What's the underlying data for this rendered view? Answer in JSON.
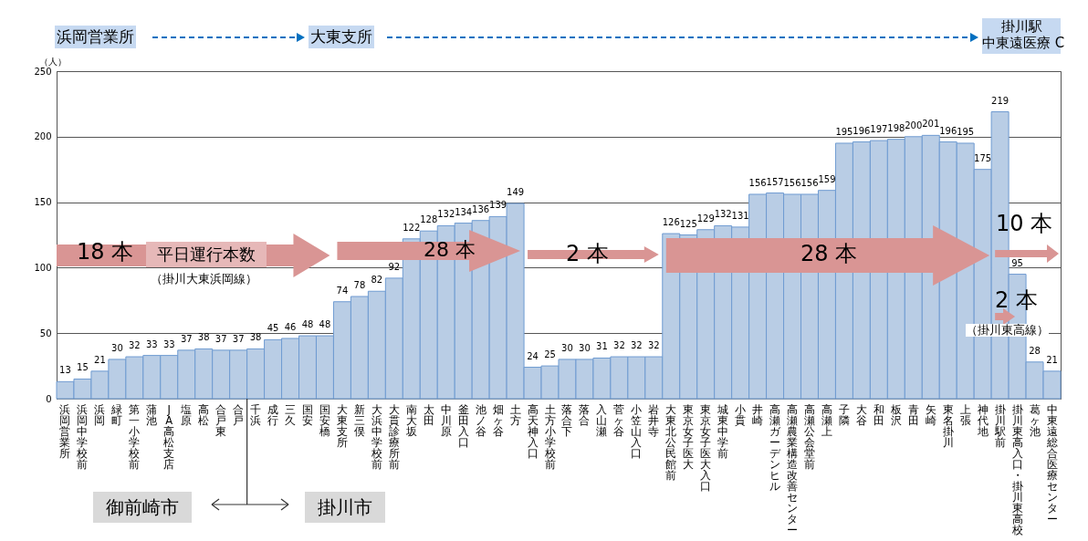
{
  "chart_data": {
    "type": "bar",
    "ylabel": "（人）",
    "categories": [
      "浜岡営業所",
      "浜岡中学校前",
      "浜岡",
      "緑町",
      "第一小学校前",
      "蒲池",
      "JA高松支店",
      "塩原",
      "高松",
      "合戸東",
      "合戸",
      "千浜",
      "成行",
      "三久",
      "国安",
      "国安橋",
      "大東支所",
      "新三俣",
      "大浜中学校前",
      "大貫診療所前",
      "南大坂",
      "太田",
      "中川原",
      "釜田入口",
      "池ノ谷",
      "畑ヶ谷",
      "土方",
      "高天神入口",
      "土方小学校前",
      "落合下",
      "落合",
      "入山瀬",
      "菅ヶ谷",
      "小笠山入口",
      "岩井寺",
      "大東北公民館前",
      "東京女子医大",
      "東京女子医大入口",
      "城東中学前",
      "小貫",
      "井崎",
      "高瀬ガーデンヒル",
      "高瀬農業構造改善センター",
      "高瀬公会堂前",
      "高瀬上",
      "子隣",
      "大谷",
      "和田",
      "板沢",
      "青田",
      "矢崎",
      "東名掛川",
      "上張",
      "神代地",
      "掛川駅前",
      "掛川東高入口・掛川東高校",
      "葛ヶ池",
      "中東遠総合医療センター"
    ],
    "values": [
      13,
      15,
      21,
      30,
      32,
      33,
      33,
      37,
      38,
      37,
      37,
      38,
      45,
      46,
      48,
      48,
      74,
      78,
      82,
      92,
      122,
      128,
      132,
      134,
      136,
      139,
      149,
      24,
      25,
      30,
      30,
      31,
      32,
      32,
      32,
      126,
      125,
      129,
      132,
      131,
      156,
      157,
      156,
      156,
      159,
      195,
      196,
      197,
      198,
      200,
      201,
      196,
      195,
      175,
      219,
      95,
      28,
      21
    ],
    "color": "#b9cde5",
    "ylim": [
      0,
      250
    ],
    "yticks": [
      0,
      50,
      100,
      150,
      200,
      250
    ],
    "grid": "y",
    "data_labels": true,
    "annotations": [
      "浜岡営業所",
      "大東支所",
      "掛川駅",
      "中東遠医療 C",
      "18 本",
      "平日運行本数",
      "（掛川大東浜岡線）",
      "28 本",
      "2 本",
      "28 本",
      "10 本",
      "2 本",
      "（掛川東高線）",
      "御前崎市",
      "掛川市"
    ]
  }
}
